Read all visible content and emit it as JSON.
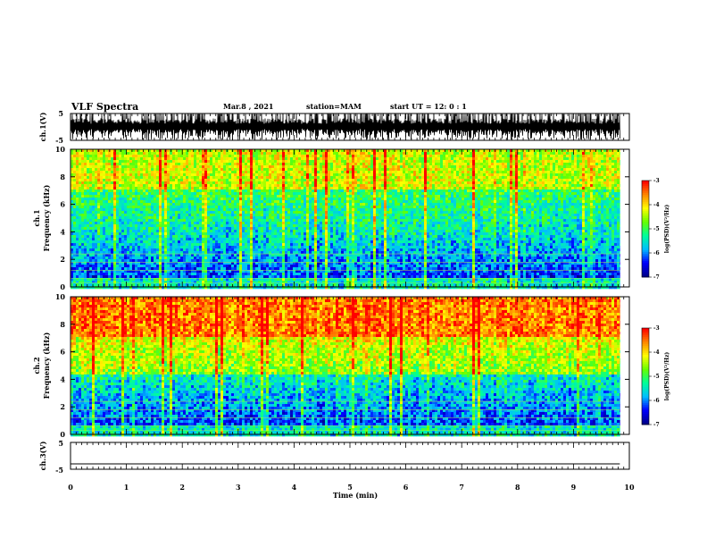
{
  "header": {
    "title": "VLF Spectra",
    "date": "Mar.8 , 2021",
    "station": "station=MAM",
    "start_ut": "start UT =  12: 0 : 1"
  },
  "chart_data": [
    {
      "type": "line",
      "name": "ch1-waveform",
      "ylabel": "ch.1(V)",
      "ylim": [
        -5,
        5
      ],
      "yticks": [
        "5",
        "-5"
      ],
      "description_values": {
        "amplitude_v": 5
      }
    },
    {
      "type": "heatmap",
      "name": "ch1-spectrogram",
      "ylabel": "ch.1\nFrequency (kHz)",
      "ylim": [
        0,
        10
      ],
      "yticks": [
        "0",
        "2",
        "4",
        "6",
        "8",
        "10"
      ],
      "colorbar": {
        "label": "log(PSD)(V²/Hz)",
        "range": [
          -7,
          -3
        ],
        "ticks": [
          "-3",
          "-4",
          "-5",
          "-6",
          "-7"
        ]
      }
    },
    {
      "type": "heatmap",
      "name": "ch2-spectrogram",
      "ylabel": "ch.2\nFrequency (kHz)",
      "ylim": [
        0,
        10
      ],
      "yticks": [
        "0",
        "2",
        "4",
        "6",
        "8",
        "10"
      ],
      "colorbar": {
        "label": "log(PSD)(V²/Hz)",
        "range": [
          -7,
          -3
        ],
        "ticks": [
          "-3",
          "-4",
          "-5",
          "-6",
          "-7"
        ]
      }
    },
    {
      "type": "line",
      "name": "ch3-waveform",
      "ylabel": "ch.3(V)",
      "ylim": [
        -5,
        5
      ],
      "yticks": [
        "5",
        "-5"
      ],
      "x": [
        0,
        9.83
      ],
      "y": [
        -3,
        -3
      ]
    }
  ],
  "xaxis": {
    "label": "Time (min)",
    "ticks": [
      "0",
      "1",
      "2",
      "3",
      "4",
      "5",
      "6",
      "7",
      "8",
      "9",
      "10"
    ],
    "range": [
      0,
      10
    ],
    "data_end": 9.83
  },
  "colors": {
    "colormap": [
      "#00008b",
      "#0000ff",
      "#00bfff",
      "#00ff99",
      "#66ff00",
      "#ffff00",
      "#ff8800",
      "#ff0000"
    ],
    "axis": "#000000"
  }
}
